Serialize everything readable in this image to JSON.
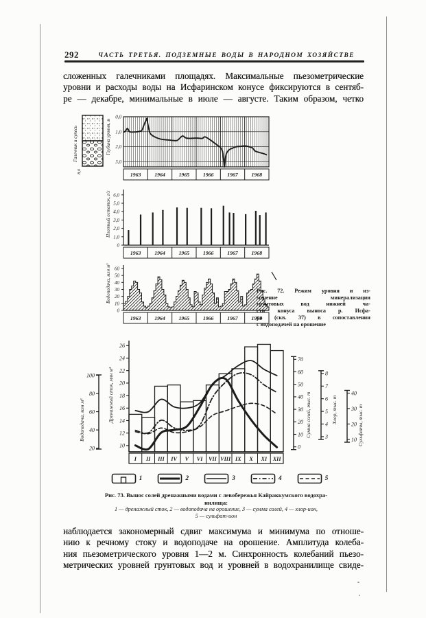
{
  "page": {
    "number": "292",
    "running_head": "ЧАСТЬ ТРЕТЬЯ. ПОДЗЕМНЫЕ ВОДЫ В НАРОДНОМ ХОЗЯЙСТВЕ"
  },
  "paragraphs": {
    "top_lines": [
      "сложенных галечниками площадях.  Максимальные  пьезометрические",
      "уровни и расходы воды на Исфаринском конусе фиксируются в сентяб-",
      "ре — декабре,  минимальные  в  июле — августе.  Таким  образом,  четко"
    ],
    "bottom_lines": [
      "наблюдается закономерный сдвиг максимума и минимума по отноше-",
      "нию к речному стоку и водоподаче на орошение. Амплитуда колеба-",
      "ния пьезометрического уровня 1—2 м. Синхронность колебаний пьезо-",
      "метрических уровней грунтовых вод и уровней в водохранилище свиде-"
    ]
  },
  "fig72": {
    "caption_lines": [
      "Рис. 72. Режим уровня и из-",
      "менение минерализации",
      "грунтовых вод нижней ча-",
      "сти конуса выноса р. Исфа-",
      "ра (скв. 37) в сопоставлении",
      "с водоподачей на орошение"
    ],
    "lithology_label": "Галечник и супесь",
    "lithology_depth": "8,0"
  },
  "fig73": {
    "caption_line1": "Рис. 73. Вынос солей дренажными водами с левобережья Кайраккумского водохра-",
    "caption_line2": "нилища:",
    "caption_key_line1": "1 — дренажный сток,  2 — водоподача на орошение,  3 — сумма солей,  4 — хлор-ион,",
    "caption_key_line2": "5 — сульфат-ион",
    "legend_numbers": [
      "1",
      "2",
      "3",
      "4",
      "5"
    ]
  },
  "chart_data": [
    {
      "id": "fig72_level",
      "type": "line",
      "ylabel": "Глубина уровня, м",
      "y_ticks": [
        "0,0",
        "1,0",
        "2,0",
        "3,0"
      ],
      "y_tick_values": [
        0,
        1,
        2,
        3
      ],
      "ylim": [
        0,
        3.35
      ],
      "y_inverted": true,
      "years": [
        "1963",
        "1964",
        "1965",
        "1966",
        "1967",
        "1968"
      ],
      "points_month_depth": [
        [
          0,
          1.05
        ],
        [
          1,
          0.95
        ],
        [
          2,
          0.78
        ],
        [
          3,
          1.0
        ],
        [
          5,
          1.02
        ],
        [
          7,
          1.0
        ],
        [
          9,
          0.92
        ],
        [
          10,
          0.6
        ],
        [
          11,
          0.28
        ],
        [
          11.6,
          0.12
        ],
        [
          12,
          0.45
        ],
        [
          13,
          1.05
        ],
        [
          14,
          1.22
        ],
        [
          16,
          1.38
        ],
        [
          18,
          1.48
        ],
        [
          20,
          1.53
        ],
        [
          22,
          1.55
        ],
        [
          24,
          1.58
        ],
        [
          26,
          1.6
        ],
        [
          27,
          1.55
        ],
        [
          29,
          1.3
        ],
        [
          30,
          1.33
        ],
        [
          31,
          1.42
        ],
        [
          33,
          1.45
        ],
        [
          35,
          1.43
        ],
        [
          37,
          1.43
        ],
        [
          39,
          1.45
        ],
        [
          40,
          1.35
        ],
        [
          41,
          1.38
        ],
        [
          43,
          1.55
        ],
        [
          45,
          1.75
        ],
        [
          47,
          1.95
        ],
        [
          48,
          2.05
        ],
        [
          49,
          2.3
        ],
        [
          49.6,
          2.9
        ],
        [
          50,
          3.35
        ],
        [
          50.5,
          2.75
        ],
        [
          51,
          2.45
        ],
        [
          52,
          2.25
        ],
        [
          53,
          2.15
        ],
        [
          54,
          2.1
        ],
        [
          56,
          2.0
        ],
        [
          58,
          1.98
        ],
        [
          60,
          1.95
        ],
        [
          62,
          2.0
        ],
        [
          63,
          2.05
        ],
        [
          64,
          2.1
        ],
        [
          65,
          2.28
        ],
        [
          67,
          2.38
        ],
        [
          69,
          2.45
        ],
        [
          71,
          2.55
        ]
      ]
    },
    {
      "id": "fig72_residue",
      "type": "spikes",
      "ylabel": "Плотный остаток, г/л",
      "y_ticks": [
        "0",
        "1,0",
        "2,0",
        "3,0",
        "4,0",
        "5,0",
        "6,0"
      ],
      "y_tick_values": [
        0,
        1,
        2,
        3,
        4,
        5,
        6
      ],
      "ylim": [
        0,
        6.6
      ],
      "years": [
        "1963",
        "1964",
        "1965",
        "1966",
        "1967",
        "1968"
      ],
      "spikes_month_value": [
        [
          2,
          1.8
        ],
        [
          8,
          3.65
        ],
        [
          14,
          3.9
        ],
        [
          19,
          4.2
        ],
        [
          26,
          4.5
        ],
        [
          31,
          4.45
        ],
        [
          38,
          4.45
        ],
        [
          43,
          4.4
        ],
        [
          49,
          4.7
        ],
        [
          52,
          3.9
        ],
        [
          54,
          3.85
        ],
        [
          60,
          3.7
        ],
        [
          65,
          4.1
        ],
        [
          67,
          3.6
        ],
        [
          70,
          3.9
        ]
      ]
    },
    {
      "id": "fig72_supply",
      "type": "hatched-bars",
      "ylabel": "Водоподача, млн м³",
      "y_ticks": [
        "0",
        "10",
        "20",
        "30",
        "40",
        "50",
        "60"
      ],
      "y_tick_values": [
        0,
        10,
        20,
        30,
        40,
        50,
        60
      ],
      "ylim": [
        0,
        66
      ],
      "years": [
        "1963",
        "1964",
        "1965",
        "1966",
        "1967",
        "1968"
      ],
      "monthly_values": [
        10,
        13,
        20,
        30,
        35,
        42,
        40,
        30,
        25,
        12,
        6,
        4,
        6,
        10,
        18,
        28,
        38,
        48,
        44,
        30,
        22,
        10,
        5,
        4,
        5,
        12,
        20,
        28,
        36,
        43,
        40,
        30,
        18,
        8,
        5,
        27,
        25,
        12,
        8,
        22,
        32,
        40,
        45,
        38,
        25,
        10,
        18,
        5,
        6,
        10,
        27,
        27,
        30,
        38,
        45,
        40,
        28,
        12,
        20,
        6,
        8,
        25,
        28,
        30,
        38,
        45,
        52,
        42,
        28,
        15,
        8,
        5
      ]
    },
    {
      "id": "fig73_combo",
      "type": "combo",
      "x_months": [
        "I",
        "II",
        "III",
        "IV",
        "V",
        "VI",
        "VII",
        "VIII",
        "IX",
        "X",
        "XI",
        "XII"
      ],
      "axes": {
        "drainage": {
          "label": "Дренажный сток, млн м³",
          "ticks": [
            10,
            12,
            14,
            16,
            18,
            20,
            22,
            24,
            26
          ],
          "plot_range": [
            9,
            26.8
          ]
        },
        "supply": {
          "label": "Водоподача, млн м³",
          "ticks": [
            20,
            40,
            60,
            80,
            100
          ]
        },
        "salts": {
          "label": "Сумма солей, тыс. т",
          "ticks": [
            0,
            10,
            20,
            30,
            40,
            50,
            60,
            70
          ]
        },
        "chlorine": {
          "label": "Хлор, тыс. т",
          "ticks": [
            3,
            4,
            5,
            6,
            7,
            8
          ]
        },
        "sulfates": {
          "label": "Сульфаты, тыс. т",
          "ticks": [
            10,
            20,
            30,
            40
          ]
        }
      },
      "bars": {
        "name": "дренажный сток",
        "unit": "млн м³",
        "values": [
          15,
          14.5,
          19.5,
          19.7,
          17,
          17.2,
          19.7,
          21.5,
          22.3,
          25.8,
          26.2,
          25.2
        ]
      },
      "series": [
        {
          "name": "водоподача на орошение",
          "unit": "млн м³",
          "style": "solid-thick",
          "values": [
            23,
            19,
            37,
            40,
            44,
            65,
            90,
            96,
            72,
            51,
            34,
            21
          ],
          "plot_range": [
            16,
            138
          ]
        },
        {
          "name": "сумма солей",
          "unit": "тыс. т",
          "style": "solid",
          "values": [
            29,
            28,
            38,
            32,
            31,
            35,
            50,
            57,
            65,
            69,
            62,
            57
          ],
          "plot_range": [
            -4,
            85
          ]
        },
        {
          "name": "хлор-ион",
          "unit": "тыс. т",
          "style": "dashdot",
          "values": [
            3.5,
            3.3,
            4.3,
            3.7,
            3.5,
            3.9,
            6.1,
            7.3,
            8.0,
            7.9,
            7.1,
            6.5
          ],
          "plot_range": [
            1.8,
            10.6
          ]
        },
        {
          "name": "сульфат-ион",
          "unit": "тыс. т",
          "style": "dashed",
          "values": [
            15,
            13.7,
            17.4,
            14.5,
            15,
            18,
            25.6,
            28.5,
            31.4,
            33.4,
            31.8,
            26.4
          ],
          "plot_range": [
            2,
            74
          ]
        }
      ]
    }
  ]
}
